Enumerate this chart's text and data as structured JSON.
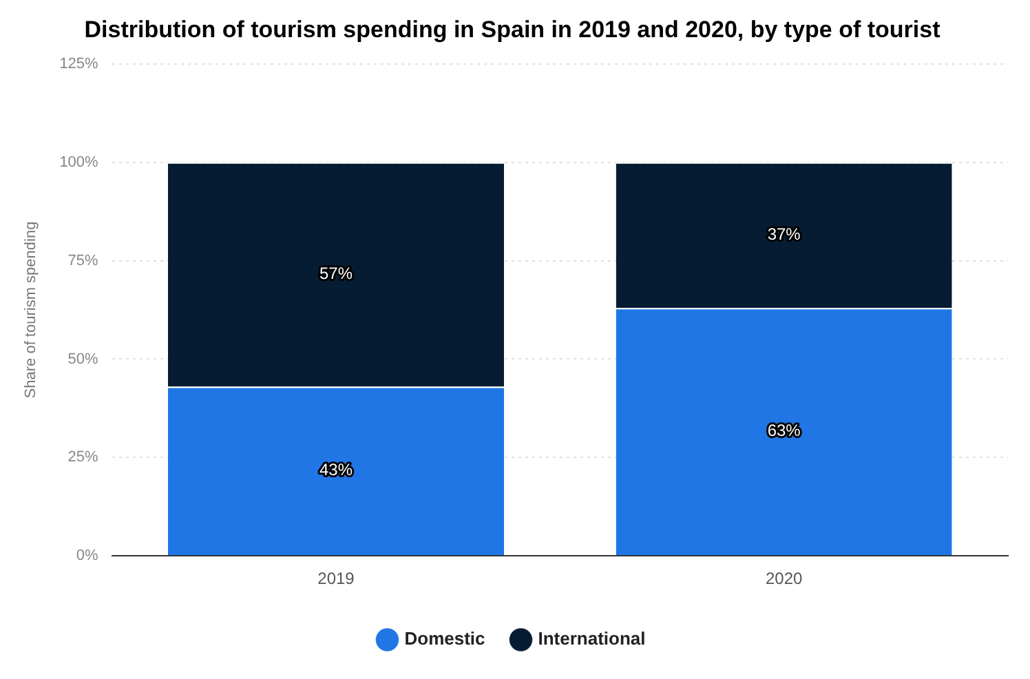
{
  "chart_data": {
    "type": "bar",
    "title": "Distribution of tourism spending in Spain in 2019 and 2020, by type of tourist",
    "ylabel": "Share of tourism spending",
    "categories": [
      "2019",
      "2020"
    ],
    "stacked": true,
    "series": [
      {
        "name": "Domestic",
        "color": "#2176e6",
        "values": [
          43,
          63
        ],
        "value_labels": [
          "43%",
          "63%"
        ]
      },
      {
        "name": "International",
        "color": "#061c33",
        "values": [
          57,
          37
        ],
        "value_labels": [
          "57%",
          "37%"
        ]
      }
    ],
    "ylim": [
      0,
      125
    ],
    "yticks": [
      {
        "value": 0,
        "label": "0%"
      },
      {
        "value": 25,
        "label": "25%"
      },
      {
        "value": 50,
        "label": "50%"
      },
      {
        "value": 75,
        "label": "75%"
      },
      {
        "value": 100,
        "label": "100%"
      },
      {
        "value": 125,
        "label": "125%"
      }
    ],
    "grid": "y",
    "legend": "bottom"
  }
}
